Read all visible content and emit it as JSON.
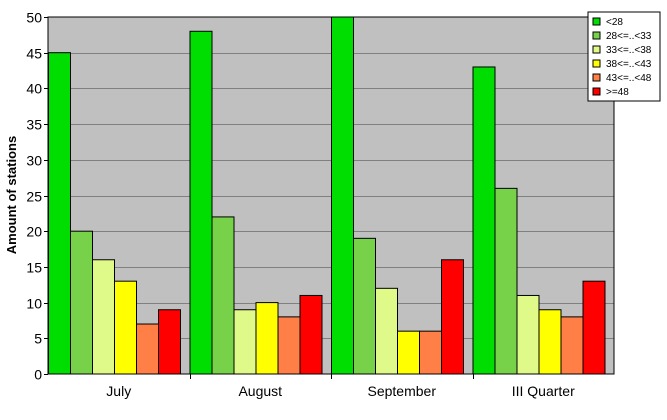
{
  "chart_data": {
    "type": "bar",
    "title": "",
    "xlabel": "",
    "ylabel": "Amount of stations",
    "ylim": [
      0,
      50
    ],
    "ytick_step": 5,
    "grid": true,
    "legend_position": "top-right",
    "categories": [
      "July",
      "August",
      "September",
      "III Quarter"
    ],
    "series": [
      {
        "name": "<28",
        "color": "#00dd00",
        "values": [
          45,
          48,
          50,
          43
        ]
      },
      {
        "name": "28<=..<33",
        "color": "#77d24a",
        "values": [
          20,
          22,
          19,
          26
        ]
      },
      {
        "name": "33<=..<38",
        "color": "#e0fa8a",
        "values": [
          16,
          9,
          12,
          11
        ]
      },
      {
        "name": "38<=..<43",
        "color": "#ffff00",
        "values": [
          13,
          10,
          6,
          9
        ]
      },
      {
        "name": "43<=..<48",
        "color": "#ff7f47",
        "values": [
          7,
          8,
          6,
          8
        ]
      },
      {
        "name": ">=48",
        "color": "#ff0000",
        "values": [
          9,
          11,
          16,
          13
        ]
      }
    ],
    "plot_background": "#c0c0c0",
    "gridline_color": "#808080"
  }
}
